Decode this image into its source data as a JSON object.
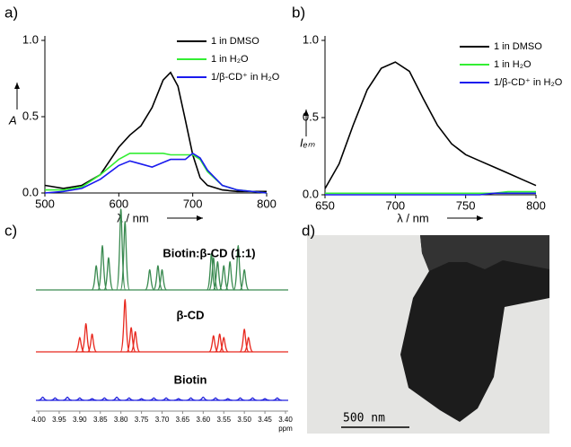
{
  "chart_data": [
    {
      "type": "line",
      "panel_label": "a)",
      "xlabel": "λ / nm",
      "ylabel": "A",
      "xlim": [
        500,
        800
      ],
      "xticks": [
        500,
        600,
        700,
        800
      ],
      "ylim": [
        0,
        1
      ],
      "yticks": [
        {
          "value": 0,
          "label": "0.0"
        },
        0.5,
        {
          "value": 1,
          "label": "1.0"
        }
      ],
      "x": [
        500,
        525,
        550,
        575,
        600,
        615,
        630,
        645,
        660,
        670,
        680,
        690,
        700,
        710,
        720,
        740,
        760,
        800
      ],
      "series": [
        {
          "name": "1 in DMSO",
          "color": "#000000",
          "values": [
            0.05,
            0.03,
            0.05,
            0.12,
            0.3,
            0.38,
            0.44,
            0.56,
            0.74,
            0.79,
            0.7,
            0.48,
            0.25,
            0.1,
            0.05,
            0.02,
            0.01,
            0.01
          ]
        },
        {
          "name": "1 in H₂O",
          "color": "#33ee33",
          "values": [
            0.02,
            0.02,
            0.04,
            0.12,
            0.22,
            0.26,
            0.26,
            0.26,
            0.26,
            0.25,
            0.25,
            0.25,
            0.25,
            0.22,
            0.14,
            0.05,
            0.02,
            0.0
          ]
        },
        {
          "name": "1/β-CD⁺ in H₂O",
          "color": "#1a1aee",
          "values": [
            0.0,
            0.01,
            0.03,
            0.09,
            0.18,
            0.21,
            0.19,
            0.17,
            0.2,
            0.22,
            0.22,
            0.22,
            0.26,
            0.23,
            0.15,
            0.05,
            0.02,
            0.0
          ]
        }
      ]
    },
    {
      "type": "line",
      "panel_label": "b)",
      "xlabel": "λ / nm",
      "ylabel": "Iₑₘ",
      "xlim": [
        650,
        800
      ],
      "xticks": [
        650,
        700,
        750,
        800
      ],
      "ylim": [
        0,
        1
      ],
      "yticks": [
        {
          "value": 0,
          "label": "0.0"
        },
        0.5,
        {
          "value": 1,
          "label": "1.0"
        }
      ],
      "x": [
        650,
        660,
        670,
        680,
        690,
        700,
        710,
        720,
        730,
        740,
        750,
        760,
        770,
        780,
        790,
        800
      ],
      "series": [
        {
          "name": "1 in DMSO",
          "color": "#000000",
          "values": [
            0.04,
            0.2,
            0.45,
            0.68,
            0.82,
            0.86,
            0.8,
            0.62,
            0.45,
            0.33,
            0.26,
            0.22,
            0.18,
            0.14,
            0.1,
            0.06
          ]
        },
        {
          "name": "1 in H₂O",
          "color": "#33ee33",
          "values": [
            0.01,
            0.01,
            0.01,
            0.01,
            0.01,
            0.01,
            0.01,
            0.01,
            0.01,
            0.01,
            0.01,
            0.01,
            0.01,
            0.02,
            0.02,
            0.02
          ]
        },
        {
          "name": "1/β-CD⁺ in H₂O",
          "color": "#1a1aee",
          "values": [
            0.0,
            0.0,
            0.0,
            0.0,
            0.0,
            0.0,
            0.0,
            0.0,
            0.0,
            0.0,
            0.0,
            0.0,
            0.01,
            0.01,
            0.01,
            0.01
          ]
        }
      ]
    },
    {
      "type": "spectrum",
      "panel_label": "c)",
      "xlabel": "ppm",
      "xlim": [
        4.0,
        3.4
      ],
      "xticks": [
        {
          "value": 4.0,
          "label": "4.00"
        },
        3.95,
        {
          "value": 3.9,
          "label": "3.90"
        },
        3.85,
        {
          "value": 3.8,
          "label": "3.80"
        },
        3.75,
        {
          "value": 3.7,
          "label": "3.70"
        },
        3.65,
        {
          "value": 3.6,
          "label": "3.60"
        },
        3.55,
        {
          "value": 3.5,
          "label": "3.50"
        },
        3.45,
        {
          "value": 3.4,
          "label": "3.40"
        }
      ],
      "series": [
        {
          "name": "Biotin:β-CD (1:1)",
          "color": "#3a8a50",
          "x": [
            3.86,
            3.845,
            3.83,
            3.8,
            3.79,
            3.73,
            3.71,
            3.7,
            3.58,
            3.575,
            3.565,
            3.55,
            3.535,
            3.515,
            3.5
          ],
          "values": [
            0.3,
            0.55,
            0.4,
            1.0,
            0.85,
            0.25,
            0.3,
            0.25,
            0.45,
            0.4,
            0.35,
            0.3,
            0.35,
            0.55,
            0.25
          ]
        },
        {
          "name": "β-CD",
          "color": "#e8281e",
          "x": [
            3.9,
            3.885,
            3.87,
            3.79,
            3.775,
            3.765,
            3.575,
            3.56,
            3.55,
            3.5,
            3.49
          ],
          "values": [
            0.18,
            0.35,
            0.22,
            0.65,
            0.3,
            0.25,
            0.2,
            0.22,
            0.18,
            0.28,
            0.18
          ]
        },
        {
          "name": "Biotin",
          "color": "#2222dd",
          "x": [
            3.99,
            3.96,
            3.93,
            3.9,
            3.87,
            3.84,
            3.81,
            3.78,
            3.75,
            3.72,
            3.69,
            3.66,
            3.63,
            3.6,
            3.57,
            3.54,
            3.51,
            3.48,
            3.45,
            3.42
          ],
          "values": [
            0.04,
            0.03,
            0.04,
            0.03,
            0.02,
            0.03,
            0.04,
            0.03,
            0.02,
            0.03,
            0.03,
            0.02,
            0.03,
            0.04,
            0.03,
            0.02,
            0.03,
            0.03,
            0.02,
            0.03
          ]
        }
      ]
    }
  ],
  "image": {
    "panel_label": "d)",
    "scale_bar": "500 nm"
  }
}
